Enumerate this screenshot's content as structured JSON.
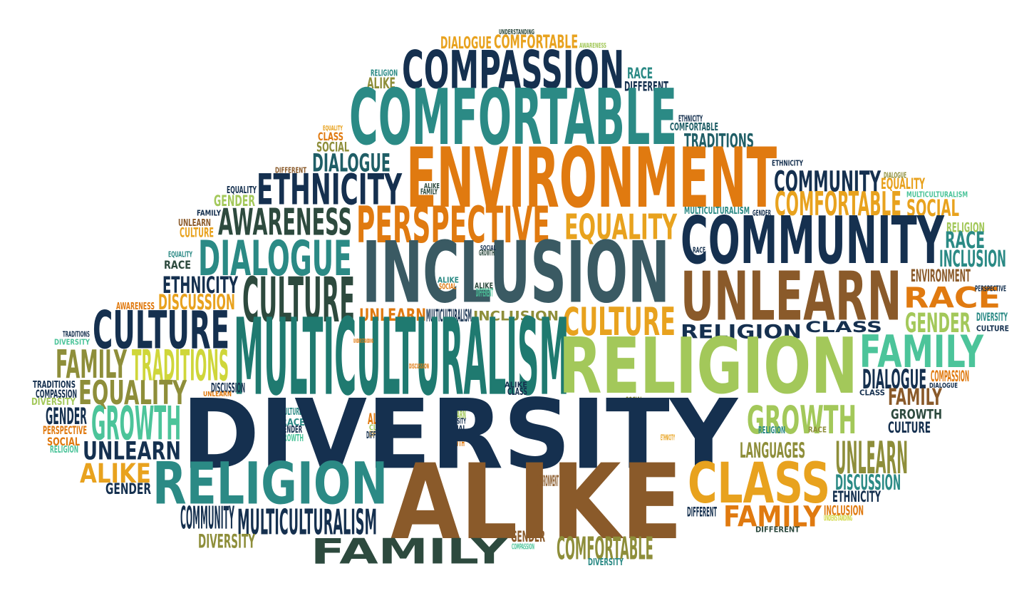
{
  "palette": {
    "navy": "#15304f",
    "dark_teal": "#1f5e66",
    "teal": "#2b8a85",
    "deep_teal": "#1f7a70",
    "mint": "#4cc49a",
    "slate": "#3a5a63",
    "orange": "#e07a10",
    "amber": "#e8a21e",
    "yellow_green": "#cfd63a",
    "olive": "#8e8e3a",
    "lime": "#a3c85a",
    "brown": "#8a5a2a",
    "dark_green": "#2d4a3e"
  },
  "words": [
    {
      "text": "UNDERSTANDING",
      "color": "#2d4a3e"
    },
    {
      "text": "DIALOGUE",
      "color": "#e8a21e"
    },
    {
      "text": "COMFORTABLE",
      "color": "#e8a21e"
    },
    {
      "text": "AWARENESS",
      "color": "#a3c85a"
    },
    {
      "text": "RELIGION",
      "color": "#2b8a85"
    },
    {
      "text": "COMPASSION",
      "color": "#15304f"
    },
    {
      "text": "RACE",
      "color": "#2b8a85"
    },
    {
      "text": "ALIKE",
      "color": "#8e8e3a"
    },
    {
      "text": "DIFFERENT",
      "color": "#15304f"
    },
    {
      "text": "COMFORTABLE",
      "color": "#2b8a85"
    },
    {
      "text": "ETHNICITY",
      "color": "#15304f"
    },
    {
      "text": "COMFORTABLE",
      "color": "#1f5e66"
    },
    {
      "text": "EQUALITY",
      "color": "#e8a21e"
    },
    {
      "text": "CLASS",
      "color": "#e07a10"
    },
    {
      "text": "SOCIAL",
      "color": "#8e8e3a"
    },
    {
      "text": "TRADITIONS",
      "color": "#1f5e66"
    },
    {
      "text": "DIALOGUE",
      "color": "#1f5e66"
    },
    {
      "text": "ENVIRONMENT",
      "color": "#e07a10"
    },
    {
      "text": "ETHNICITY",
      "color": "#15304f"
    },
    {
      "text": "DIFFERENT",
      "color": "#8a5a2a"
    },
    {
      "text": "COMMUNITY",
      "color": "#15304f"
    },
    {
      "text": "DIALOGUE",
      "color": "#8e8e3a"
    },
    {
      "text": "EQUALITY",
      "color": "#e8a21e"
    },
    {
      "text": "ETHNICITY",
      "color": "#15304f"
    },
    {
      "text": "ALIKE",
      "color": "#2d4a3e"
    },
    {
      "text": "FAMILY",
      "color": "#2d4a3e"
    },
    {
      "text": "MULTICULTURALISM",
      "color": "#4cc49a"
    },
    {
      "text": "EQUALITY",
      "color": "#15304f"
    },
    {
      "text": "GENDER",
      "color": "#a3c85a"
    },
    {
      "text": "COMFORTABLE",
      "color": "#e8a21e"
    },
    {
      "text": "SOCIAL",
      "color": "#e8a21e"
    },
    {
      "text": "FAMILY",
      "color": "#15304f"
    },
    {
      "text": "AWARENESS",
      "color": "#2d4a3e"
    },
    {
      "text": "PERSPECTIVE",
      "color": "#e07a10"
    },
    {
      "text": "EQUALITY",
      "color": "#e8a21e"
    },
    {
      "text": "MULTICULTURALISM",
      "color": "#2b8a85"
    },
    {
      "text": "GENDER",
      "color": "#15304f"
    },
    {
      "text": "UNLEARN",
      "color": "#8a5a2a"
    },
    {
      "text": "CULTURE",
      "color": "#e8a21e"
    },
    {
      "text": "COMMUNITY",
      "color": "#15304f"
    },
    {
      "text": "RELIGION",
      "color": "#a3c85a"
    },
    {
      "text": "RACE",
      "color": "#2b8a85"
    },
    {
      "text": "DIALOGUE",
      "color": "#2b8a85"
    },
    {
      "text": "INCLUSION",
      "color": "#3a5a63"
    },
    {
      "text": "RACE",
      "color": "#15304f"
    },
    {
      "text": "INCLUSION",
      "color": "#2b8a85"
    },
    {
      "text": "EQUALITY",
      "color": "#2b8a85"
    },
    {
      "text": "SOCIAL",
      "color": "#15304f"
    },
    {
      "text": "GROWTH",
      "color": "#2d4a3e"
    },
    {
      "text": "RACE",
      "color": "#2d4a3e"
    },
    {
      "text": "ENVIRONMENT",
      "color": "#8a5a2a"
    },
    {
      "text": "ETHNICITY",
      "color": "#15304f"
    },
    {
      "text": "ALIKE",
      "color": "#2b8a85"
    },
    {
      "text": "CULTURE",
      "color": "#2d4a3e"
    },
    {
      "text": "RACE",
      "color": "#e07a10"
    },
    {
      "text": "SOCIAL",
      "color": "#e07a10"
    },
    {
      "text": "ALIKE",
      "color": "#2d4a3e"
    },
    {
      "text": "DIFFERENT",
      "color": "#4cc49a"
    },
    {
      "text": "UNLEARN",
      "color": "#8a5a2a"
    },
    {
      "text": "PERSPECTIVE",
      "color": "#15304f"
    },
    {
      "text": "AWARENESS",
      "color": "#e07a10"
    },
    {
      "text": "DISCUSSION",
      "color": "#e8a21e"
    },
    {
      "text": "UNLEARN",
      "color": "#e07a10"
    },
    {
      "text": "MULTICULTURALISM",
      "color": "#15304f"
    },
    {
      "text": "INCLUSION",
      "color": "#8e8e3a"
    },
    {
      "text": "CULTURE",
      "color": "#e8a21e"
    },
    {
      "text": "GENDER",
      "color": "#a3c85a"
    },
    {
      "text": "DIVERSITY",
      "color": "#2b8a85"
    },
    {
      "text": "CULTURE",
      "color": "#15304f"
    },
    {
      "text": "CULTURE",
      "color": "#15304f"
    },
    {
      "text": "TRADITIONS",
      "color": "#15304f"
    },
    {
      "text": "DIVERSITY",
      "color": "#4cc49a"
    },
    {
      "text": "RELIGION",
      "color": "#15304f"
    },
    {
      "text": "MULTICULTURALISM",
      "color": "#1f7a70"
    },
    {
      "text": "UNDERSTANDING",
      "color": "#e07a10"
    },
    {
      "text": "CLASS",
      "color": "#15304f"
    },
    {
      "text": "FAMILY",
      "color": "#8e8e3a"
    },
    {
      "text": "TRADITIONS",
      "color": "#cfd63a"
    },
    {
      "text": "RELIGION",
      "color": "#a3c85a"
    },
    {
      "text": "FAMILY",
      "color": "#4cc49a"
    },
    {
      "text": "DISCUSSION",
      "color": "#e07a10"
    },
    {
      "text": "TRADITIONS",
      "color": "#15304f"
    },
    {
      "text": "COMPASSION",
      "color": "#15304f"
    },
    {
      "text": "DIVERSITY",
      "color": "#a3c85a"
    },
    {
      "text": "EQUALITY",
      "color": "#8e8e3a"
    },
    {
      "text": "DISCUSSION",
      "color": "#15304f"
    },
    {
      "text": "UNLEARN",
      "color": "#e07a10"
    },
    {
      "text": "ALIKE",
      "color": "#15304f"
    },
    {
      "text": "CLASS",
      "color": "#15304f"
    },
    {
      "text": "GENDER",
      "color": "#15304f"
    },
    {
      "text": "DIALOGUE",
      "color": "#15304f"
    },
    {
      "text": "COMPASSION",
      "color": "#e07a10"
    },
    {
      "text": "DIALOGUE",
      "color": "#15304f"
    },
    {
      "text": "FAMILY",
      "color": "#8a5a2a"
    },
    {
      "text": "CLASS",
      "color": "#15304f"
    },
    {
      "text": "SOCIAL",
      "color": "#8e8e3a"
    },
    {
      "text": "DIVERSITY",
      "color": "#4cc49a"
    },
    {
      "text": "UNLEARN",
      "color": "#a3c85a"
    },
    {
      "text": "GROWTH",
      "color": "#4cc49a"
    },
    {
      "text": "PERSPECTIVE",
      "color": "#e07a10"
    },
    {
      "text": "SOCIAL",
      "color": "#e07a10"
    },
    {
      "text": "RELIGION",
      "color": "#4cc49a"
    },
    {
      "text": "UNLEARN",
      "color": "#15304f"
    },
    {
      "text": "CULTURE",
      "color": "#2b8a85"
    },
    {
      "text": "RACE",
      "color": "#2b8a85"
    },
    {
      "text": "GENDER",
      "color": "#15304f"
    },
    {
      "text": "GROWTH",
      "color": "#4cc49a"
    },
    {
      "text": "ALIKE",
      "color": "#e07a10"
    },
    {
      "text": "CLASS",
      "color": "#a3c85a"
    },
    {
      "text": "DIFFERENT",
      "color": "#e8a21e"
    },
    {
      "text": "DIFFERENT",
      "color": "#15304f"
    },
    {
      "text": "DIVERSITY",
      "color": "#15304f"
    },
    {
      "text": "SOCIAL",
      "color": "#15304f"
    },
    {
      "text": "CLASS",
      "color": "#e07a10"
    },
    {
      "text": "GROWTH",
      "color": "#e07a10"
    },
    {
      "text": "ETHNICITY",
      "color": "#e8a21e"
    },
    {
      "text": "GROWTH",
      "color": "#a3c85a"
    },
    {
      "text": "RELIGION",
      "color": "#2b8a85"
    },
    {
      "text": "RACE",
      "color": "#8e8e3a"
    },
    {
      "text": "GROWTH",
      "color": "#2d4a3e"
    },
    {
      "text": "CULTURE",
      "color": "#15304f"
    },
    {
      "text": "LANGUAGES",
      "color": "#8e8e3a"
    },
    {
      "text": "UNLEARN",
      "color": "#8e8e3a"
    },
    {
      "text": "ALIKE",
      "color": "#e8a21e"
    },
    {
      "text": "GENDER",
      "color": "#15304f"
    },
    {
      "text": "DIVERSITY",
      "color": "#15304f"
    },
    {
      "text": "RELIGION",
      "color": "#2b8a85"
    },
    {
      "text": "ALIKE",
      "color": "#8a5a2a"
    },
    {
      "text": "ENVIRONMENT",
      "color": "#8a5a2a"
    },
    {
      "text": "CLASS",
      "color": "#e8a21e"
    },
    {
      "text": "DISCUSSION",
      "color": "#2b8a85"
    },
    {
      "text": "ETHNICITY",
      "color": "#15304f"
    },
    {
      "text": "COMMUNITY",
      "color": "#15304f"
    },
    {
      "text": "MULTICULTURALISM",
      "color": "#15304f"
    },
    {
      "text": "DIFFERENT",
      "color": "#15304f"
    },
    {
      "text": "FAMILY",
      "color": "#e07a10"
    },
    {
      "text": "INCLUSION",
      "color": "#e07a10"
    },
    {
      "text": "UNDERSTANDING",
      "color": "#cfd63a"
    },
    {
      "text": "DIFFERENT",
      "color": "#2d4a3e"
    },
    {
      "text": "DIVERSITY",
      "color": "#8e8e3a"
    },
    {
      "text": "GENDER",
      "color": "#8a5a2a"
    },
    {
      "text": "COMPASSION",
      "color": "#4cc49a"
    },
    {
      "text": "FAMILY",
      "color": "#2d4a3e"
    },
    {
      "text": "COMFORTABLE",
      "color": "#8e8e3a"
    },
    {
      "text": "DIVERSITY",
      "color": "#2b8a85"
    }
  ]
}
